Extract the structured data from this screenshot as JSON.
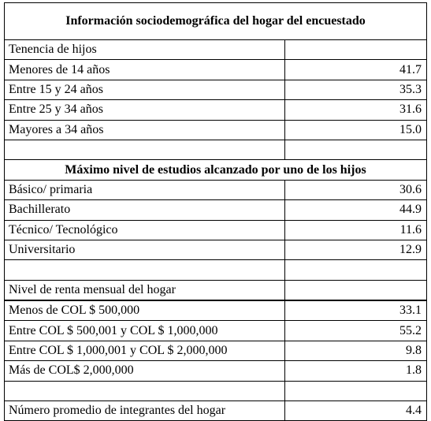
{
  "table": {
    "title": "Información sociodemográfica del hogar del encuestado",
    "rows": [
      {
        "type": "label",
        "label": "Tenencia de hijos",
        "value": ""
      },
      {
        "type": "data",
        "label": "Menores de 14 años",
        "value": "41.7"
      },
      {
        "type": "data",
        "label": "Entre 15 y 24 años",
        "value": "35.3"
      },
      {
        "type": "data",
        "label": "Entre 25 y 34 años",
        "value": "31.6"
      },
      {
        "type": "data",
        "label": "Mayores a 34 años",
        "value": "15.0"
      },
      {
        "type": "blank",
        "label": "",
        "value": ""
      },
      {
        "type": "section",
        "label": "Máximo nivel de estudios alcanzado por uno de los hijos"
      },
      {
        "type": "data",
        "label": "Básico/ primaria",
        "value": "30.6"
      },
      {
        "type": "data",
        "label": "Bachillerato",
        "value": "44.9"
      },
      {
        "type": "data",
        "label": "Técnico/ Tecnológico",
        "value": "11.6"
      },
      {
        "type": "data",
        "label": "Universitario",
        "value": "12.9"
      },
      {
        "type": "blank",
        "label": "",
        "value": ""
      },
      {
        "type": "label",
        "label": "Nivel de renta mensual del hogar",
        "value": ""
      },
      {
        "type": "data",
        "label": "Menos de COL $ 500,000",
        "value": "33.1",
        "thick": true
      },
      {
        "type": "data",
        "label": "Entre COL $ 500,001 y COL $ 1,000,000",
        "value": "55.2"
      },
      {
        "type": "data",
        "label": "Entre COL $ 1,000,001 y COL $ 2,000,000",
        "value": "9.8"
      },
      {
        "type": "data",
        "label": "Más de COL$  2,000,000",
        "value": "1.8"
      },
      {
        "type": "blank",
        "label": "",
        "value": ""
      },
      {
        "type": "data",
        "label": "Número promedio de integrantes del hogar",
        "value": "4.4"
      }
    ]
  }
}
